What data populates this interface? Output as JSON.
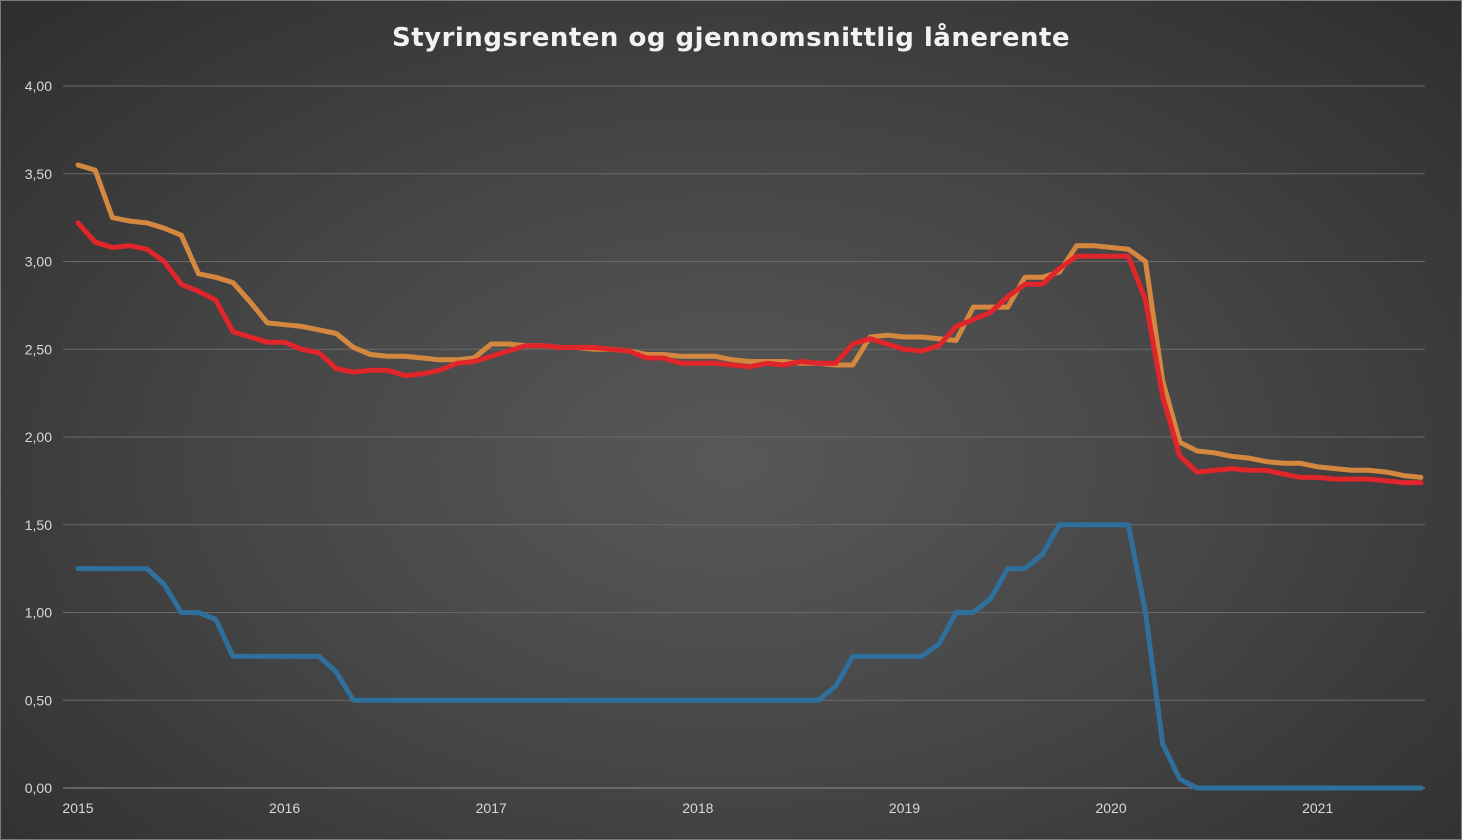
{
  "chart_data": {
    "type": "line",
    "title": "Styringsrenten og gjennomsnittlig lånerente",
    "ylim": [
      0,
      4
    ],
    "y_ticks": [
      "0,00",
      "0,50",
      "1,00",
      "1,50",
      "2,00",
      "2,50",
      "3,00",
      "3,50",
      "4,00"
    ],
    "x_ticks": [
      "2015",
      "2016",
      "2017",
      "2018",
      "2019",
      "2020",
      "2021"
    ],
    "x_tick_dates": [
      2015.0,
      2016.0,
      2017.0,
      2018.0,
      2019.0,
      2020.0,
      2021.0
    ],
    "x_dates": [
      2015.0,
      2015.0833,
      2015.1667,
      2015.25,
      2015.3333,
      2015.4167,
      2015.5,
      2015.5833,
      2015.6667,
      2015.75,
      2015.8333,
      2015.9167,
      2016.0,
      2016.0833,
      2016.1667,
      2016.25,
      2016.3333,
      2016.4167,
      2016.5,
      2016.5833,
      2016.6667,
      2016.75,
      2016.8333,
      2016.9167,
      2017.0,
      2017.0833,
      2017.1667,
      2017.25,
      2017.3333,
      2017.4167,
      2017.5,
      2017.5833,
      2017.6667,
      2017.75,
      2017.8333,
      2017.9167,
      2018.0,
      2018.0833,
      2018.1667,
      2018.25,
      2018.3333,
      2018.4167,
      2018.5,
      2018.5833,
      2018.6667,
      2018.75,
      2018.8333,
      2018.9167,
      2019.0,
      2019.0833,
      2019.1667,
      2019.25,
      2019.3333,
      2019.4167,
      2019.5,
      2019.5833,
      2019.6667,
      2019.75,
      2019.8333,
      2019.9167,
      2020.0,
      2020.0833,
      2020.1667,
      2020.25,
      2020.3333,
      2020.4167,
      2020.5,
      2020.5833,
      2020.6667,
      2020.75,
      2020.8333,
      2020.9167,
      2021.0,
      2021.0833,
      2021.1667,
      2021.25,
      2021.3333,
      2021.4167,
      2021.5
    ],
    "series": [
      {
        "color": "#d4883f",
        "values": [
          3.55,
          3.52,
          3.25,
          3.23,
          3.22,
          3.19,
          3.15,
          2.93,
          2.91,
          2.88,
          2.77,
          2.65,
          2.64,
          2.63,
          2.61,
          2.59,
          2.51,
          2.47,
          2.46,
          2.46,
          2.45,
          2.44,
          2.44,
          2.45,
          2.53,
          2.53,
          2.52,
          2.52,
          2.51,
          2.51,
          2.5,
          2.5,
          2.49,
          2.47,
          2.47,
          2.46,
          2.46,
          2.46,
          2.44,
          2.43,
          2.43,
          2.43,
          2.42,
          2.42,
          2.41,
          2.41,
          2.57,
          2.58,
          2.57,
          2.57,
          2.56,
          2.55,
          2.74,
          2.74,
          2.74,
          2.91,
          2.91,
          2.94,
          3.09,
          3.09,
          3.08,
          3.07,
          3.0,
          2.32,
          1.97,
          1.92,
          1.91,
          1.89,
          1.88,
          1.86,
          1.85,
          1.85,
          1.83,
          1.82,
          1.81,
          1.81,
          1.8,
          1.78,
          1.77
        ]
      },
      {
        "color": "#e0252b",
        "values": [
          3.22,
          3.11,
          3.08,
          3.09,
          3.07,
          3.0,
          2.87,
          2.83,
          2.78,
          2.6,
          2.57,
          2.54,
          2.54,
          2.5,
          2.48,
          2.39,
          2.37,
          2.38,
          2.38,
          2.35,
          2.36,
          2.38,
          2.42,
          2.43,
          2.46,
          2.49,
          2.52,
          2.52,
          2.51,
          2.51,
          2.51,
          2.5,
          2.49,
          2.45,
          2.45,
          2.42,
          2.42,
          2.42,
          2.41,
          2.4,
          2.42,
          2.41,
          2.43,
          2.42,
          2.42,
          2.53,
          2.56,
          2.53,
          2.5,
          2.49,
          2.52,
          2.63,
          2.67,
          2.71,
          2.8,
          2.87,
          2.87,
          2.96,
          3.03,
          3.03,
          3.03,
          3.03,
          2.78,
          2.23,
          1.89,
          1.8,
          1.81,
          1.82,
          1.81,
          1.81,
          1.79,
          1.77,
          1.77,
          1.76,
          1.76,
          1.76,
          1.75,
          1.74,
          1.74
        ]
      },
      {
        "color": "#2e6f9c",
        "values": [
          1.25,
          1.25,
          1.25,
          1.25,
          1.25,
          1.16,
          1.0,
          1.0,
          0.96,
          0.75,
          0.75,
          0.75,
          0.75,
          0.75,
          0.75,
          0.66,
          0.5,
          0.5,
          0.5,
          0.5,
          0.5,
          0.5,
          0.5,
          0.5,
          0.5,
          0.5,
          0.5,
          0.5,
          0.5,
          0.5,
          0.5,
          0.5,
          0.5,
          0.5,
          0.5,
          0.5,
          0.5,
          0.5,
          0.5,
          0.5,
          0.5,
          0.5,
          0.5,
          0.5,
          0.58,
          0.75,
          0.75,
          0.75,
          0.75,
          0.75,
          0.82,
          1.0,
          1.0,
          1.08,
          1.25,
          1.25,
          1.33,
          1.5,
          1.5,
          1.5,
          1.5,
          1.5,
          1.0,
          0.25,
          0.05,
          0.0,
          0.0,
          0.0,
          0.0,
          0.0,
          0.0,
          0.0,
          0.0,
          0.0,
          0.0,
          0.0,
          0.0,
          0.0,
          0.0
        ]
      }
    ],
    "grid": true
  }
}
